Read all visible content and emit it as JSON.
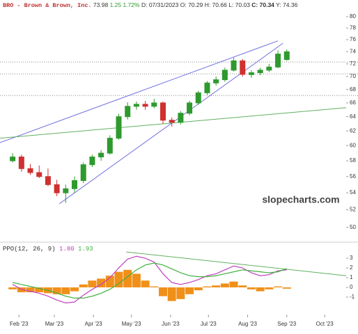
{
  "chart_data": [
    {
      "type": "candlestick",
      "header": {
        "symbol": "BRO - Brown & Brown, Inc.",
        "last": "73.98",
        "change": "1.25",
        "change_pct": "1.72%",
        "ohl": "D: 07/31/2023 O: 70.29 H: 70.66 L: 70.03",
        "close": "C: 70.34",
        "y": "Y: 74.36"
      },
      "watermark": "slopecharts.com",
      "x": [
        "2023-01-27",
        "2023-02-03",
        "2023-02-10",
        "2023-02-17",
        "2023-02-24",
        "2023-03-03",
        "2023-03-10",
        "2023-03-17",
        "2023-03-24",
        "2023-03-31",
        "2023-04-07",
        "2023-04-14",
        "2023-04-21",
        "2023-04-28",
        "2023-05-05",
        "2023-05-12",
        "2023-05-19",
        "2023-05-26",
        "2023-06-02",
        "2023-06-09",
        "2023-06-16",
        "2023-06-23",
        "2023-06-30",
        "2023-07-07",
        "2023-07-14",
        "2023-07-21",
        "2023-07-28",
        "2023-08-04",
        "2023-08-11",
        "2023-08-18",
        "2023-08-25",
        "2023-09-01"
      ],
      "open": [
        58.0,
        58.5,
        57.0,
        56.5,
        56.0,
        55.0,
        54.0,
        54.5,
        55.5,
        57.5,
        58.5,
        59.0,
        61.0,
        64.0,
        65.5,
        65.8,
        65.5,
        66.0,
        63.5,
        63.2,
        64.5,
        66.0,
        67.5,
        69.0,
        69.5,
        71.0,
        72.5,
        70.3,
        70.6,
        71.0,
        71.5,
        72.7
      ],
      "high": [
        59.0,
        58.8,
        57.6,
        57.4,
        57.0,
        55.6,
        55.0,
        56.0,
        57.8,
        58.8,
        59.4,
        61.4,
        64.4,
        66.1,
        66.2,
        66.3,
        66.6,
        66.2,
        63.9,
        64.8,
        66.3,
        67.8,
        69.3,
        70.0,
        71.4,
        73.0,
        72.8,
        71.0,
        71.4,
        72.0,
        74.2,
        74.36
      ],
      "low": [
        57.8,
        56.6,
        56.2,
        55.8,
        54.8,
        53.6,
        52.8,
        54.0,
        55.2,
        57.2,
        58.0,
        58.8,
        60.8,
        63.6,
        65.0,
        65.0,
        65.2,
        63.0,
        62.6,
        62.9,
        64.2,
        65.7,
        67.2,
        68.6,
        69.2,
        70.8,
        70.0,
        69.8,
        70.2,
        70.7,
        71.3,
        72.5
      ],
      "close": [
        58.5,
        57.0,
        56.5,
        56.0,
        55.0,
        54.0,
        54.5,
        55.5,
        57.5,
        58.5,
        59.0,
        61.0,
        64.0,
        65.5,
        65.8,
        65.5,
        66.0,
        63.5,
        63.2,
        64.5,
        66.0,
        67.5,
        69.0,
        69.5,
        71.0,
        72.5,
        70.34,
        70.6,
        71.0,
        71.5,
        73.6,
        73.98
      ],
      "up_color": "#2e9a2e",
      "down_color": "#d03030",
      "xlim": [
        "2023-01-17",
        "2023-10-18"
      ],
      "xticks": [
        {
          "value": "2023-02-01",
          "label": "Feb '23"
        },
        {
          "value": "2023-03-01",
          "label": "Mar '23"
        },
        {
          "value": "2023-04-01",
          "label": "Apr '23"
        },
        {
          "value": "2023-05-01",
          "label": "May '23"
        },
        {
          "value": "2023-06-01",
          "label": "Jun '23"
        },
        {
          "value": "2023-07-01",
          "label": "Jul '23"
        },
        {
          "value": "2023-08-01",
          "label": "Aug '23"
        },
        {
          "value": "2023-09-01",
          "label": "Sep '23"
        },
        {
          "value": "2023-10-01",
          "label": "Oct '23"
        }
      ],
      "ylim": [
        48.6,
        81.5
      ],
      "log": true,
      "yticks": [
        50,
        52,
        54,
        56,
        58,
        60,
        62,
        64,
        66,
        68,
        70,
        72,
        74,
        76,
        78,
        80
      ],
      "hlines": [
        72.3,
        70.4,
        67.1
      ],
      "trendlines": [
        {
          "x": [
            "2023-01-17",
            "2023-08-25"
          ],
          "y": [
            60.4,
            75.8
          ],
          "color": "#7070e0"
        },
        {
          "x": [
            "2023-03-05",
            "2023-08-29"
          ],
          "y": [
            52.7,
            75.4
          ],
          "color": "#7070e0"
        },
        {
          "x": [
            "2023-01-17",
            "2023-10-18"
          ],
          "y": [
            61.0,
            65.3
          ],
          "color": "#60b060"
        }
      ]
    },
    {
      "type": "line",
      "title": "PPO(12, 26, 9)",
      "xlim": [
        "2023-01-17",
        "2023-10-18"
      ],
      "x": [
        "2023-01-27",
        "2023-02-03",
        "2023-02-10",
        "2023-02-17",
        "2023-02-24",
        "2023-03-03",
        "2023-03-10",
        "2023-03-17",
        "2023-03-24",
        "2023-03-31",
        "2023-04-07",
        "2023-04-14",
        "2023-04-21",
        "2023-04-28",
        "2023-05-05",
        "2023-05-12",
        "2023-05-19",
        "2023-05-26",
        "2023-06-02",
        "2023-06-09",
        "2023-06-16",
        "2023-06-23",
        "2023-06-30",
        "2023-07-07",
        "2023-07-14",
        "2023-07-21",
        "2023-07-28",
        "2023-08-04",
        "2023-08-11",
        "2023-08-18",
        "2023-08-25",
        "2023-09-01"
      ],
      "series": [
        {
          "label": "1.80",
          "color": "#c040c0",
          "values": [
            0.3,
            -0.2,
            -0.4,
            -0.6,
            -0.9,
            -1.3,
            -1.6,
            -1.5,
            -0.8,
            -0.2,
            0.3,
            1.0,
            2.0,
            2.9,
            3.2,
            3.0,
            2.6,
            1.4,
            0.5,
            0.3,
            0.5,
            0.8,
            1.2,
            1.4,
            1.8,
            2.2,
            2.0,
            1.5,
            1.2,
            1.3,
            1.7,
            1.8
          ]
        },
        {
          "label": "1.93",
          "color": "#40b040",
          "values": [
            0.5,
            0.3,
            0.1,
            -0.1,
            -0.3,
            -0.6,
            -0.9,
            -1.1,
            -1.1,
            -0.9,
            -0.6,
            -0.2,
            0.4,
            1.1,
            1.8,
            2.3,
            2.5,
            2.3,
            1.9,
            1.5,
            1.2,
            1.1,
            1.1,
            1.2,
            1.4,
            1.6,
            1.8,
            1.7,
            1.6,
            1.5,
            1.6,
            1.93
          ]
        }
      ],
      "histogram": {
        "color": "#f0901a",
        "values": [
          -0.2,
          -0.5,
          -0.5,
          -0.5,
          -0.6,
          -0.7,
          -0.7,
          -0.4,
          0.3,
          0.7,
          0.9,
          1.2,
          1.6,
          1.8,
          1.4,
          0.7,
          0.1,
          -0.9,
          -1.4,
          -1.2,
          -0.7,
          -0.3,
          0.1,
          0.2,
          0.4,
          0.6,
          0.2,
          -0.2,
          -0.4,
          -0.2,
          0.1,
          -0.13
        ]
      },
      "trendlines": [
        {
          "x": [
            "2023-04-27",
            "2023-10-18"
          ],
          "y": [
            3.64,
            1.2
          ],
          "color": "#60b060"
        }
      ],
      "ylim": [
        -2.5,
        4.36
      ],
      "yticks": [
        -1,
        0,
        1,
        2,
        3
      ]
    }
  ]
}
